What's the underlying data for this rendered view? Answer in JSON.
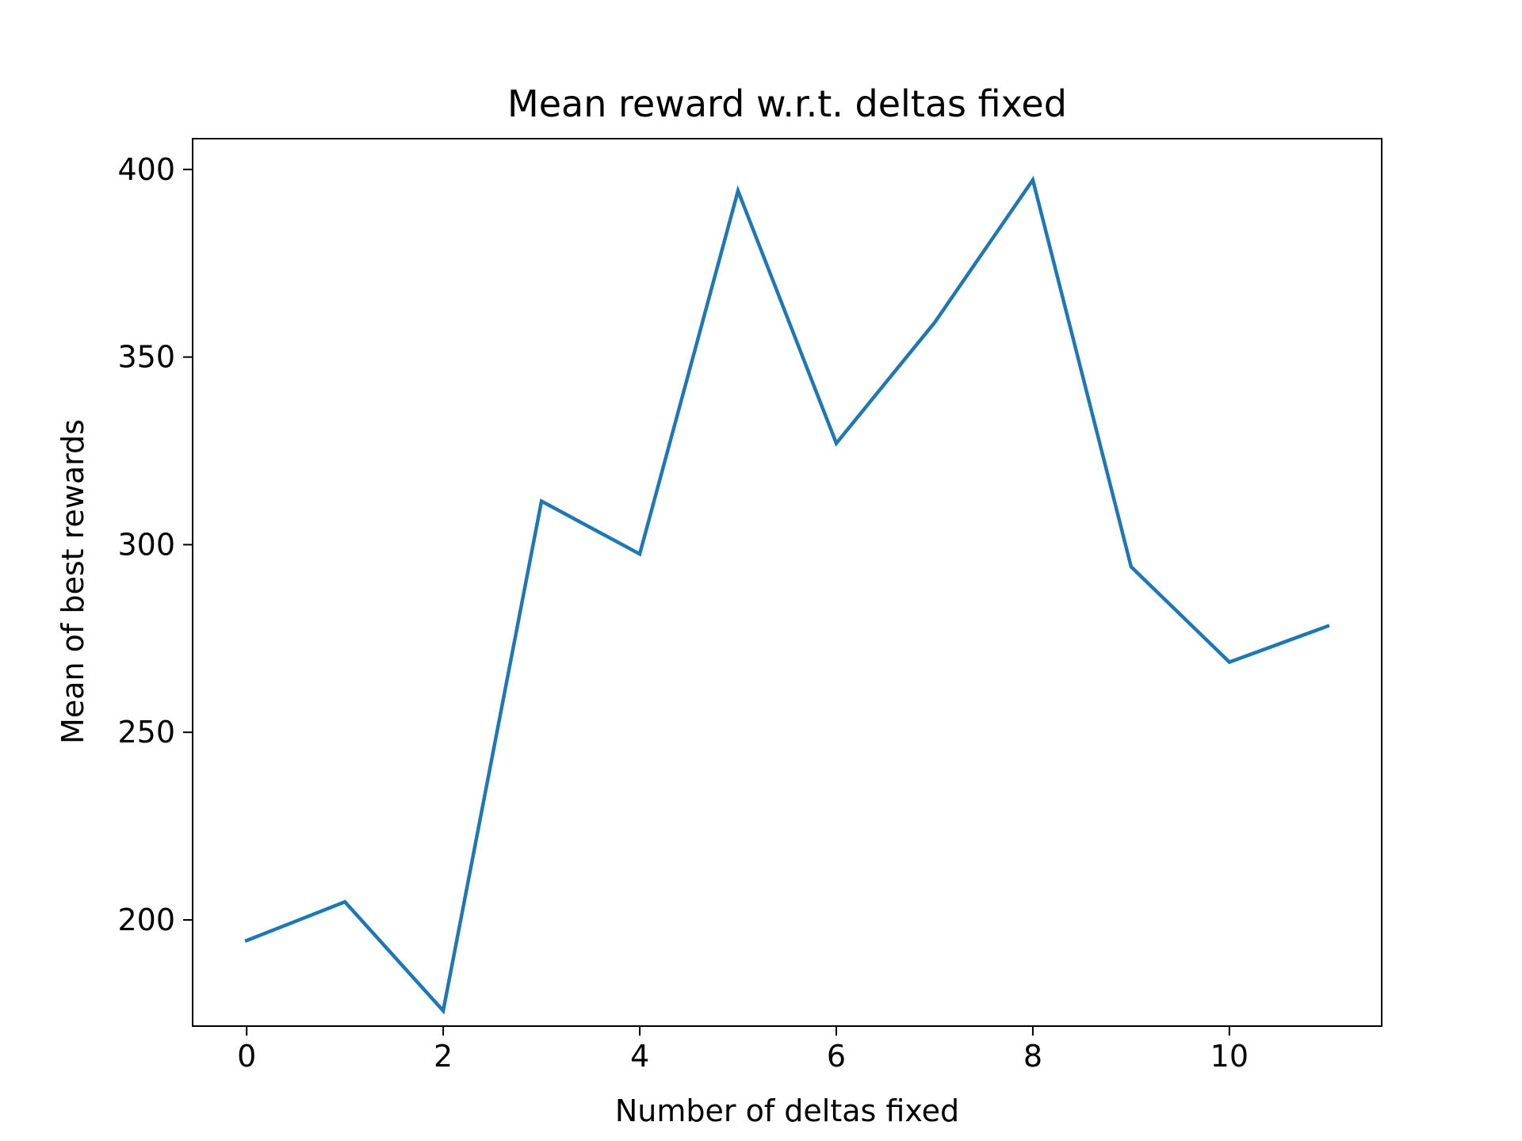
{
  "chart_data": {
    "type": "line",
    "title": "Mean reward w.r.t. deltas fixed",
    "xlabel": "Number of deltas fixed",
    "ylabel": "Mean of best rewards",
    "xlim": [
      -0.55,
      11.55
    ],
    "ylim": [
      171.7,
      408.2
    ],
    "xticks": [
      0,
      2,
      4,
      6,
      8,
      10
    ],
    "yticks": [
      200,
      250,
      300,
      350,
      400
    ],
    "grid": false,
    "series": [
      {
        "color": "#1f77b4",
        "x": [
          0,
          1,
          2,
          3,
          4,
          5,
          6,
          7,
          8,
          9,
          10,
          11
        ],
        "y": [
          194.5,
          204.8,
          175.8,
          311.6,
          297.5,
          394.3,
          327.0,
          359.2,
          397.2,
          294.1,
          268.7,
          278.3
        ]
      }
    ]
  }
}
